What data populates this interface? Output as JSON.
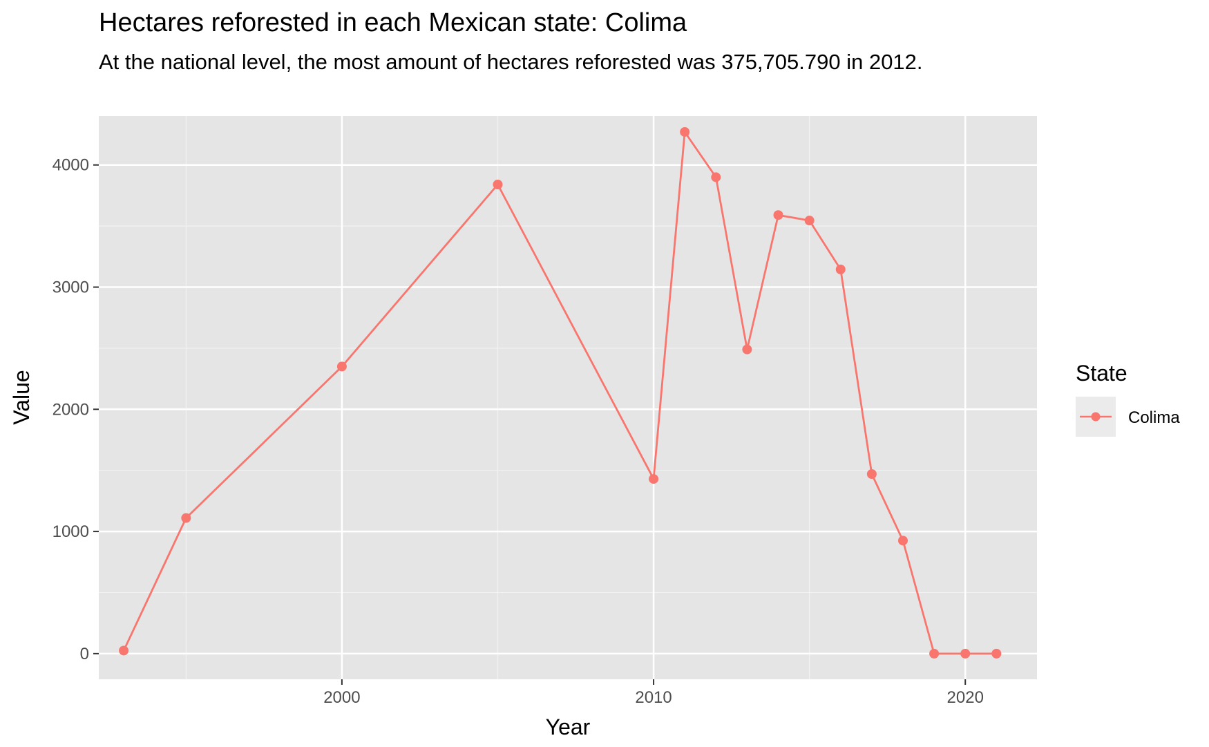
{
  "chart_data": {
    "type": "line",
    "title": "Hectares reforested in each Mexican state: Colima",
    "subtitle": "At the national level, the most amount of hectares reforested was 375,705.790 in 2012.",
    "xlabel": "Year",
    "ylabel": "Value",
    "xlim": [
      1992.2,
      2022.3
    ],
    "ylim": [
      -210,
      4400
    ],
    "x_ticks": [
      2000,
      2010,
      2020
    ],
    "y_ticks": [
      0,
      1000,
      2000,
      3000,
      4000
    ],
    "legend": {
      "title": "State",
      "position": "right"
    },
    "series": [
      {
        "name": "Colima",
        "color": "#f8766d",
        "x": [
          1993,
          1995,
          2000,
          2005,
          2010,
          2011,
          2012,
          2013,
          2014,
          2015,
          2016,
          2017,
          2018,
          2019,
          2020,
          2021
        ],
        "values": [
          25,
          1110,
          2350,
          3840,
          1430,
          4270,
          3900,
          2490,
          3590,
          3545,
          3145,
          1470,
          925,
          0,
          0,
          0
        ]
      }
    ]
  }
}
